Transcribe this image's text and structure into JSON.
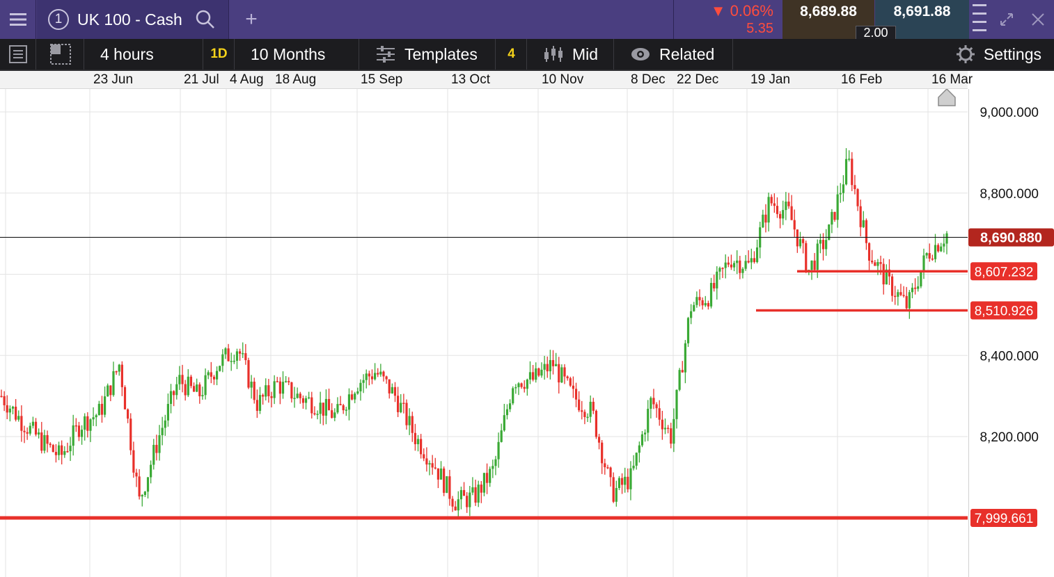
{
  "header": {
    "instrument_number": "1",
    "instrument": "UK 100 - Cash",
    "add_tab": "+",
    "change_pct": "0.06%",
    "change_pts": "5.35",
    "sell": "8,689.88",
    "buy": "8,691.88",
    "spread": "2.00"
  },
  "toolbar": {
    "interval": "4 hours",
    "interval_badge": "1D",
    "period": "10 Months",
    "templates": "Templates",
    "templates_count": "4",
    "price_type": "Mid",
    "related": "Related",
    "settings": "Settings"
  },
  "dates": [
    "23 Jun",
    "21 Jul",
    "4 Aug",
    "18 Aug",
    "15 Sep",
    "13 Oct",
    "10 Nov",
    "8 Dec",
    "22 Dec",
    "19 Jan",
    "16 Feb",
    "16 Mar"
  ],
  "colors": {
    "up": "#3aa935",
    "down": "#e8302a",
    "level": "#e8302a",
    "current": "#b3261e"
  },
  "chart_data": {
    "type": "candlestick",
    "x": [
      "23 Jun",
      "21 Jul",
      "4 Aug",
      "18 Aug",
      "15 Sep",
      "13 Oct",
      "10 Nov",
      "8 Dec",
      "22 Dec",
      "19 Jan",
      "16 Feb",
      "16 Mar"
    ],
    "y_ticks": [
      "8,200.000",
      "8,400.000",
      "8,800.000",
      "9,000.000"
    ],
    "ylim": [
      7880,
      9040
    ],
    "current_price": "8,690.880",
    "levels": [
      {
        "label": "8,607.232",
        "value": 8607.232
      },
      {
        "label": "8,510.926",
        "value": 8510.926
      },
      {
        "label": "7,999.661",
        "value": 7999.661
      }
    ],
    "approx_closes": [
      8300,
      8240,
      8190,
      8150,
      8230,
      8260,
      8380,
      8040,
      8200,
      8340,
      8300,
      8380,
      8420,
      8280,
      8330,
      8300,
      8280,
      8250,
      8330,
      8360,
      8300,
      8200,
      8130,
      8040,
      8050,
      8120,
      8340,
      8340,
      8380,
      8300,
      8260,
      8060,
      8100,
      8290,
      8200,
      8520,
      8550,
      8640,
      8620,
      8780,
      8750,
      8610,
      8700,
      8880,
      8660,
      8580,
      8520,
      8650,
      8700
    ]
  }
}
